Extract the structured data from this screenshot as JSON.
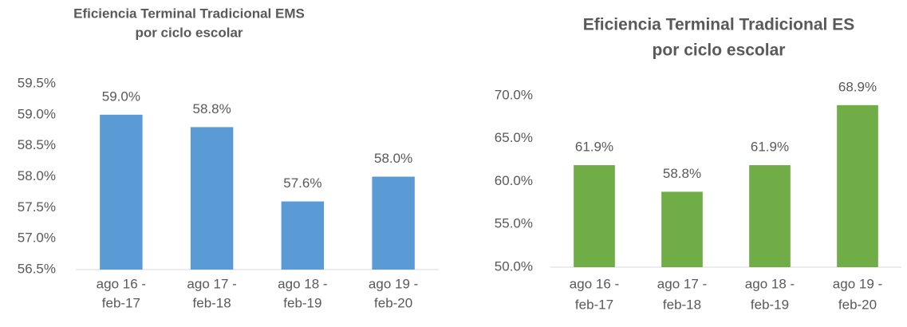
{
  "chart_data": [
    {
      "type": "bar",
      "title": [
        "Eficiencia Terminal Tradicional EMS",
        "por ciclo escolar"
      ],
      "categories": [
        [
          "ago 16 -",
          "feb-17"
        ],
        [
          "ago 17 -",
          "feb-18"
        ],
        [
          "ago 18 -",
          "feb-19"
        ],
        [
          "ago 19 -",
          "feb-20"
        ]
      ],
      "values": [
        59.0,
        58.8,
        57.6,
        58.0
      ],
      "value_labels": [
        "59.0%",
        "58.8%",
        "57.6%",
        "58.0%"
      ],
      "color": "#5b9bd5",
      "ylim": [
        56.5,
        59.5
      ],
      "yticks": [
        {
          "value": 56.5,
          "label": "56.5%"
        },
        {
          "value": 57.0,
          "label": "57.0%"
        },
        {
          "value": 57.5,
          "label": "57.5%"
        },
        {
          "value": 58.0,
          "label": "58.0%"
        },
        {
          "value": 58.5,
          "label": "58.5%"
        },
        {
          "value": 59.0,
          "label": "59.0%"
        },
        {
          "value": 59.5,
          "label": "59.5%"
        }
      ],
      "grid": false
    },
    {
      "type": "bar",
      "title": [
        "Eficiencia Terminal Tradicional ES",
        "por ciclo escolar"
      ],
      "categories": [
        [
          "ago 16 -",
          "feb-17"
        ],
        [
          "ago 17 -",
          "feb-18"
        ],
        [
          "ago 18 -",
          "feb-19"
        ],
        [
          "ago 19 -",
          "feb-20"
        ]
      ],
      "values": [
        61.9,
        58.8,
        61.9,
        68.9
      ],
      "value_labels": [
        "61.9%",
        "58.8%",
        "61.9%",
        "68.9%"
      ],
      "color": "#70ad47",
      "ylim": [
        50,
        70
      ],
      "yticks": [
        {
          "value": 50,
          "label": "50.0%"
        },
        {
          "value": 55,
          "label": "55.0%"
        },
        {
          "value": 60,
          "label": "60.0%"
        },
        {
          "value": 65,
          "label": "65.0%"
        },
        {
          "value": 70,
          "label": "70.0%"
        }
      ],
      "grid": false
    }
  ]
}
